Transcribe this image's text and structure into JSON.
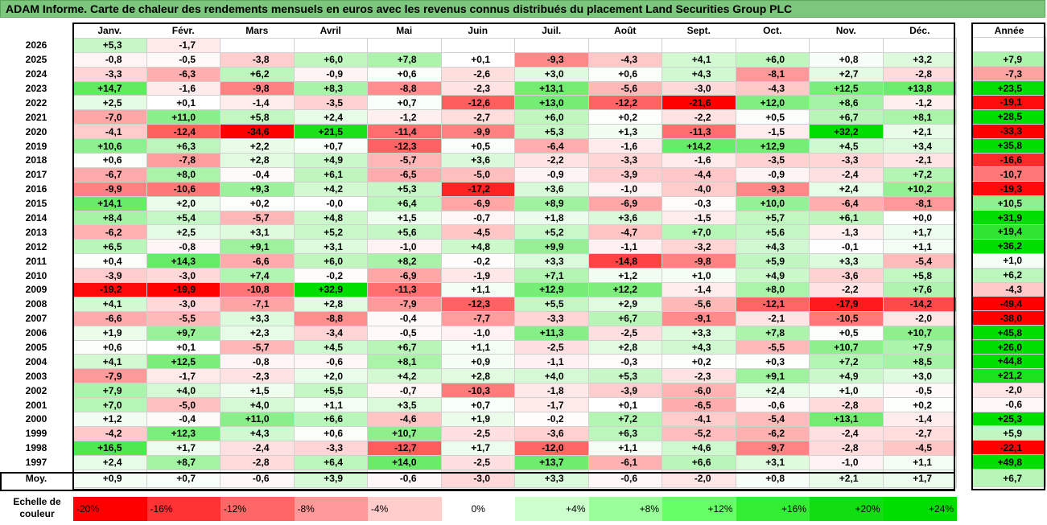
{
  "title": "ADAM Informe. Carte de chaleur des rendements mensuels en euros avec les revenus connus distribués du placement Land Securities Group PLC",
  "chart_data": {
    "type": "heatmap",
    "columns": [
      "Janv.",
      "Févr.",
      "Mars",
      "Avril",
      "Mai",
      "Juin",
      "Juil.",
      "Août",
      "Sept.",
      "Oct.",
      "Nov.",
      "Déc."
    ],
    "annual_header": "Année",
    "rows": [
      {
        "year": "2026",
        "values": [
          "+5,3",
          "-1,7",
          "",
          "",
          "",
          "",
          "",
          "",
          "",
          "",
          "",
          ""
        ],
        "annual": ""
      },
      {
        "year": "2025",
        "values": [
          "-0,8",
          "-0,5",
          "-3,8",
          "+6,0",
          "+7,8",
          "+0,1",
          "-9,3",
          "-4,3",
          "+4,1",
          "+6,0",
          "+0,8",
          "+3,2"
        ],
        "annual": "+7,9"
      },
      {
        "year": "2024",
        "values": [
          "-3,3",
          "-6,3",
          "+6,2",
          "-0,9",
          "+0,6",
          "-2,6",
          "+3,0",
          "+0,6",
          "+4,3",
          "-8,1",
          "+2,7",
          "-2,8"
        ],
        "annual": "-7,3"
      },
      {
        "year": "2023",
        "values": [
          "+14,7",
          "-1,6",
          "-9,8",
          "+8,3",
          "-8,8",
          "-2,3",
          "+13,1",
          "-5,6",
          "-3,0",
          "-4,3",
          "+12,5",
          "+13,8"
        ],
        "annual": "+23,5"
      },
      {
        "year": "2022",
        "values": [
          "+2,5",
          "+0,1",
          "-1,4",
          "-3,5",
          "+0,7",
          "-12,6",
          "+13,0",
          "-12,2",
          "-21,6",
          "+12,0",
          "+8,6",
          "-1,2"
        ],
        "annual": "-19,1"
      },
      {
        "year": "2021",
        "values": [
          "-7,0",
          "+11,0",
          "+5,8",
          "+2,4",
          "-1,2",
          "-2,7",
          "+6,0",
          "+0,2",
          "-2,2",
          "+0,5",
          "+6,7",
          "+8,1"
        ],
        "annual": "+28,5"
      },
      {
        "year": "2020",
        "values": [
          "-4,1",
          "-12,4",
          "-34,6",
          "+21,5",
          "-11,4",
          "-9,9",
          "+5,3",
          "+1,3",
          "-11,3",
          "-1,5",
          "+32,2",
          "+2,1"
        ],
        "annual": "-33,3"
      },
      {
        "year": "2019",
        "values": [
          "+10,6",
          "+6,3",
          "+2,2",
          "+0,7",
          "-12,3",
          "+0,5",
          "-6,4",
          "-1,6",
          "+14,2",
          "+12,9",
          "+4,5",
          "+3,4"
        ],
        "annual": "+35,8"
      },
      {
        "year": "2018",
        "values": [
          "+0,6",
          "-7,8",
          "+2,8",
          "+4,9",
          "-5,7",
          "+3,6",
          "-2,2",
          "-3,3",
          "-1,6",
          "-3,5",
          "-3,3",
          "-2,1"
        ],
        "annual": "-16,6"
      },
      {
        "year": "2017",
        "values": [
          "-6,7",
          "+8,0",
          "-0,4",
          "+6,1",
          "-6,5",
          "-5,0",
          "-0,9",
          "-3,9",
          "-4,4",
          "-0,9",
          "-2,4",
          "+7,2"
        ],
        "annual": "-10,7"
      },
      {
        "year": "2016",
        "values": [
          "-9,9",
          "-10,6",
          "+9,3",
          "+4,2",
          "+5,3",
          "-17,2",
          "+3,6",
          "-1,0",
          "-4,0",
          "-9,3",
          "+2,4",
          "+10,2"
        ],
        "annual": "-19,3"
      },
      {
        "year": "2015",
        "values": [
          "+14,1",
          "+2,0",
          "+0,2",
          "-0,0",
          "+6,4",
          "-6,9",
          "+8,9",
          "-6,9",
          "-0,3",
          "+10,0",
          "-6,4",
          "-8,1"
        ],
        "annual": "+10,5"
      },
      {
        "year": "2014",
        "values": [
          "+8,4",
          "+5,4",
          "-5,7",
          "+4,8",
          "+1,5",
          "-0,7",
          "+1,8",
          "+3,6",
          "-1,5",
          "+5,7",
          "+6,1",
          "+0,0"
        ],
        "annual": "+31,9"
      },
      {
        "year": "2013",
        "values": [
          "-6,2",
          "+2,5",
          "+3,1",
          "+5,2",
          "+5,6",
          "-4,5",
          "+5,2",
          "-4,7",
          "+7,0",
          "+5,6",
          "-1,3",
          "+1,7"
        ],
        "annual": "+19,4"
      },
      {
        "year": "2012",
        "values": [
          "+6,5",
          "-0,8",
          "+9,1",
          "+3,1",
          "-1,0",
          "+4,8",
          "+9,9",
          "-1,1",
          "-3,2",
          "+4,3",
          "-0,1",
          "+1,1"
        ],
        "annual": "+36,2"
      },
      {
        "year": "2011",
        "values": [
          "+0,4",
          "+14,3",
          "-6,6",
          "+6,0",
          "+8,2",
          "-0,2",
          "+3,3",
          "-14,8",
          "-9,8",
          "+5,9",
          "+3,3",
          "-5,4"
        ],
        "annual": "+1,0"
      },
      {
        "year": "2010",
        "values": [
          "-3,9",
          "-3,0",
          "+7,4",
          "-0,2",
          "-6,9",
          "-1,9",
          "+7,1",
          "+1,2",
          "+1,0",
          "+4,9",
          "-3,6",
          "+5,8"
        ],
        "annual": "+6,2"
      },
      {
        "year": "2009",
        "values": [
          "-19,2",
          "-19,9",
          "-10,8",
          "+32,9",
          "-11,3",
          "+1,1",
          "+12,9",
          "+12,2",
          "-1,4",
          "+8,0",
          "-2,2",
          "+7,6"
        ],
        "annual": "-4,3"
      },
      {
        "year": "2008",
        "values": [
          "+4,1",
          "-3,0",
          "-7,1",
          "+2,8",
          "-7,9",
          "-12,3",
          "+5,5",
          "+2,9",
          "-5,6",
          "-12,1",
          "-17,9",
          "-14,2"
        ],
        "annual": "-49,4"
      },
      {
        "year": "2007",
        "values": [
          "-6,6",
          "-5,5",
          "+3,3",
          "-8,8",
          "-0,4",
          "-7,7",
          "-3,3",
          "+6,7",
          "-9,1",
          "-2,1",
          "-10,5",
          "-2,0"
        ],
        "annual": "-38,0"
      },
      {
        "year": "2006",
        "values": [
          "+1,9",
          "+9,7",
          "+2,3",
          "-3,4",
          "-0,5",
          "-1,0",
          "+11,3",
          "-2,5",
          "+3,3",
          "+7,8",
          "+0,5",
          "+10,7"
        ],
        "annual": "+45,8"
      },
      {
        "year": "2005",
        "values": [
          "+0,6",
          "+0,1",
          "-5,7",
          "+4,5",
          "+6,7",
          "+1,1",
          "-2,5",
          "+2,8",
          "+4,3",
          "-5,5",
          "+10,7",
          "+7,9"
        ],
        "annual": "+26,0"
      },
      {
        "year": "2004",
        "values": [
          "+4,1",
          "+12,5",
          "-0,8",
          "-0,6",
          "+8,1",
          "+0,9",
          "-1,1",
          "-0,3",
          "+0,2",
          "+0,3",
          "+7,2",
          "+8,5"
        ],
        "annual": "+44,8"
      },
      {
        "year": "2003",
        "values": [
          "-7,9",
          "-1,7",
          "-2,3",
          "+2,0",
          "+4,2",
          "+2,8",
          "+4,0",
          "+5,3",
          "-2,3",
          "+9,1",
          "+4,9",
          "+3,0"
        ],
        "annual": "+21,2"
      },
      {
        "year": "2002",
        "values": [
          "+7,9",
          "+4,0",
          "+1,5",
          "+5,5",
          "-0,7",
          "-10,3",
          "-1,8",
          "-3,9",
          "-6,0",
          "+2,4",
          "+1,0",
          "-0,5"
        ],
        "annual": "-2,0"
      },
      {
        "year": "2001",
        "values": [
          "+7,0",
          "-5,0",
          "+4,0",
          "+1,1",
          "+3,5",
          "+0,7",
          "-1,7",
          "+0,1",
          "-6,5",
          "-0,6",
          "-2,8",
          "+0,2"
        ],
        "annual": "-0,6"
      },
      {
        "year": "2000",
        "values": [
          "+1,2",
          "-0,4",
          "+11,0",
          "+6,6",
          "-4,6",
          "+1,9",
          "-0,2",
          "+7,2",
          "-4,1",
          "-5,4",
          "+13,1",
          "-1,4"
        ],
        "annual": "+25,3"
      },
      {
        "year": "1999",
        "values": [
          "-4,2",
          "+12,3",
          "+4,3",
          "+0,6",
          "+10,7",
          "-2,5",
          "-3,6",
          "+6,3",
          "-5,2",
          "-6,2",
          "-2,4",
          "-2,7"
        ],
        "annual": "+5,9"
      },
      {
        "year": "1998",
        "values": [
          "+16,5",
          "+1,7",
          "-2,4",
          "-3,3",
          "-12,7",
          "+1,7",
          "-12,0",
          "+1,1",
          "+4,6",
          "-9,7",
          "-2,8",
          "-4,5"
        ],
        "annual": "-22,1"
      },
      {
        "year": "1997",
        "values": [
          "+2,4",
          "+8,7",
          "-2,8",
          "+6,4",
          "+14,0",
          "-2,5",
          "+13,7",
          "-6,1",
          "+6,6",
          "+3,1",
          "-1,0",
          "+1,1"
        ],
        "annual": "+49,8"
      }
    ],
    "average": {
      "label": "Moy.",
      "values": [
        "+0,9",
        "+0,7",
        "-0,6",
        "+3,9",
        "-0,6",
        "-3,0",
        "+3,3",
        "-0,6",
        "-2,0",
        "+0,8",
        "+2,1",
        "+1,7"
      ],
      "annual": "+6,7"
    },
    "legend": {
      "label_line1": "Echelle de",
      "label_line2": "couleur",
      "stops": [
        {
          "label": "-20%",
          "color": "#ff0000"
        },
        {
          "label": "-16%",
          "color": "#ff3333"
        },
        {
          "label": "-12%",
          "color": "#ff6666"
        },
        {
          "label": "-8%",
          "color": "#ff9999"
        },
        {
          "label": "-4%",
          "color": "#ffcccc"
        },
        {
          "label": "0%",
          "color": "#ffffff"
        },
        {
          "label": "+4%",
          "color": "#ccffcc"
        },
        {
          "label": "+8%",
          "color": "#99ff99"
        },
        {
          "label": "+12%",
          "color": "#66ff66"
        },
        {
          "label": "+16%",
          "color": "#33ee33"
        },
        {
          "label": "+20%",
          "color": "#11dd11"
        },
        {
          "label": "+24%",
          "color": "#00dd00"
        }
      ]
    },
    "colors": {
      "negative_max": "#ff0000",
      "positive_max": "#00dd00",
      "neutral": "#ffffff",
      "title_bar": "#7dc67d"
    }
  }
}
